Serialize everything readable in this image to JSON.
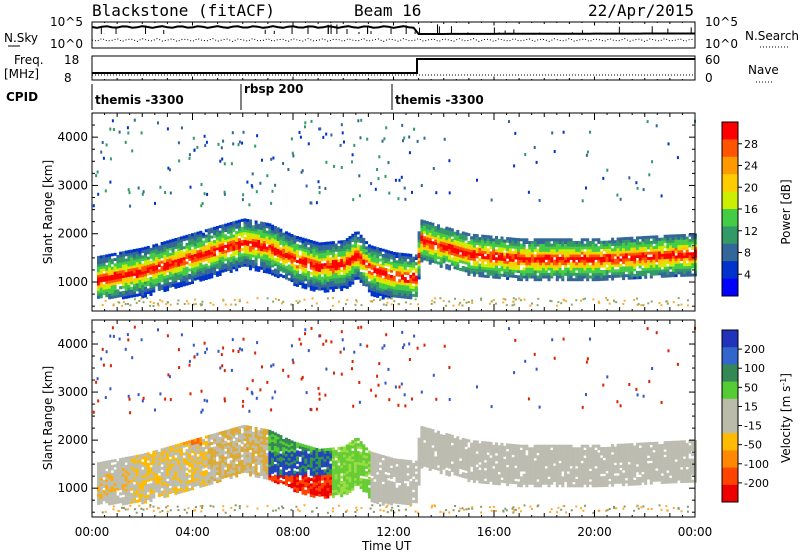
{
  "header": {
    "station": "Blackstone (fitACF)",
    "beam": "Beam 16",
    "date": "22/Apr/2015"
  },
  "left_labels": {
    "nsky": "N.Sky",
    "freq": "Freq.",
    "freq_unit": "[MHz]",
    "cpid": "CPID"
  },
  "right_labels": {
    "nsearch": "N.Search",
    "nave": "Nave"
  },
  "noise_panel": {
    "left_ticks": [
      "10^5",
      "10^0"
    ],
    "right_ticks": [
      "10^5",
      "10^0"
    ]
  },
  "freq_panel": {
    "left_ticks": [
      "18",
      "8"
    ],
    "right_ticks": [
      "60",
      "0"
    ]
  },
  "cpid_segments": [
    {
      "label": "themis -3300",
      "start_hour": 0
    },
    {
      "label": "rbsp 200",
      "start_hour": 6
    },
    {
      "label": "themis -3300",
      "start_hour": 12
    }
  ],
  "power_colorbar": {
    "label": "Power [dB]",
    "ticks": [
      "28",
      "24",
      "20",
      "16",
      "12",
      "8",
      "4"
    ],
    "colors": [
      "#ff0000",
      "#ff5500",
      "#ff9900",
      "#ffcc00",
      "#ccee00",
      "#44cc44",
      "#339966",
      "#336699",
      "#0033cc",
      "#0000ff"
    ]
  },
  "velocity_colorbar": {
    "label": "Velocity [m s",
    "label_sup": "-1",
    "label_end": "]",
    "ticks": [
      "200",
      "100",
      "50",
      "15",
      "-15",
      "-50",
      "-100",
      "-200"
    ],
    "colors": [
      "#2233bb",
      "#3366cc",
      "#338855",
      "#55cc33",
      "#bbbbaa",
      "#bbbbaa",
      "#ffbb00",
      "#ff8800",
      "#ff4400",
      "#ee0000"
    ]
  },
  "chart_data": [
    {
      "type": "heatmap",
      "name": "power",
      "ylabel": "Slant Range [km]",
      "y_ticks": [
        "1000",
        "2000",
        "3000",
        "4000"
      ],
      "ylim": [
        400,
        4500
      ],
      "xlim": [
        0,
        24
      ],
      "scatter_band_ridge_km": [
        [
          0,
          1050
        ],
        [
          1,
          1150
        ],
        [
          2,
          1250
        ],
        [
          3,
          1400
        ],
        [
          4,
          1550
        ],
        [
          5,
          1700
        ],
        [
          6,
          1850
        ],
        [
          7,
          1750
        ],
        [
          8,
          1500
        ],
        [
          9,
          1350
        ],
        [
          10,
          1400
        ],
        [
          10.5,
          1600
        ],
        [
          11,
          1300
        ],
        [
          12,
          1150
        ],
        [
          12.9,
          1100
        ],
        [
          13,
          1900
        ],
        [
          14,
          1750
        ],
        [
          15,
          1600
        ],
        [
          16,
          1550
        ],
        [
          17,
          1500
        ],
        [
          18,
          1500
        ],
        [
          19,
          1500
        ],
        [
          20,
          1500
        ],
        [
          21,
          1520
        ],
        [
          22,
          1550
        ],
        [
          23,
          1580
        ],
        [
          24,
          1600
        ]
      ]
    },
    {
      "type": "heatmap",
      "name": "velocity",
      "ylabel": "Slant Range [km]",
      "xlabel": "Time UT",
      "y_ticks": [
        "1000",
        "2000",
        "3000",
        "4000"
      ],
      "ylim": [
        400,
        4500
      ],
      "xlim": [
        0,
        24
      ],
      "x_ticks": [
        "00:00",
        "04:00",
        "08:00",
        "12:00",
        "16:00",
        "20:00",
        "00:00"
      ]
    }
  ]
}
